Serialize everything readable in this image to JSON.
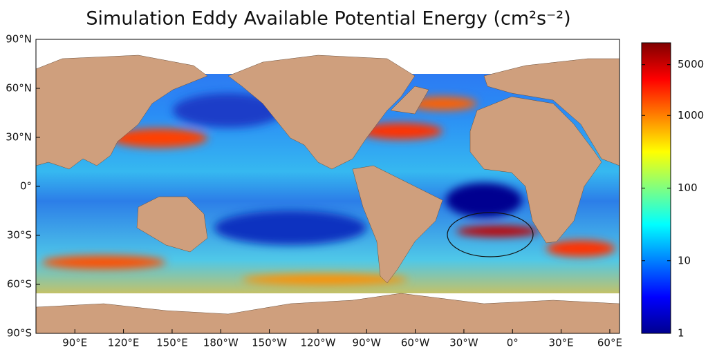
{
  "chart_data": {
    "type": "map",
    "title": "Simulation Eddy Available Potential Energy (cm²s⁻²)",
    "xlim": [
      66,
      426
    ],
    "xticks": [
      {
        "value": 90,
        "label": "90°E"
      },
      {
        "value": 120,
        "label": "120°E"
      },
      {
        "value": 150,
        "label": "150°E"
      },
      {
        "value": 180,
        "label": "180°W"
      },
      {
        "value": 210,
        "label": "150°W"
      },
      {
        "value": 240,
        "label": "120°W"
      },
      {
        "value": 270,
        "label": "90°W"
      },
      {
        "value": 300,
        "label": "60°W"
      },
      {
        "value": 330,
        "label": "30°W"
      },
      {
        "value": 360,
        "label": "0°"
      },
      {
        "value": 390,
        "label": "30°E"
      },
      {
        "value": 420,
        "label": "60°E"
      }
    ],
    "ylim": [
      -90,
      90
    ],
    "yticks": [
      {
        "value": 90,
        "label": "90°N"
      },
      {
        "value": 60,
        "label": "60°N"
      },
      {
        "value": 30,
        "label": "30°N"
      },
      {
        "value": 0,
        "label": "0°"
      },
      {
        "value": -30,
        "label": "30°S"
      },
      {
        "value": -60,
        "label": "60°S"
      },
      {
        "value": -90,
        "label": "90°S"
      }
    ],
    "colorbar": {
      "log_scale": true,
      "clim": [
        1,
        10000
      ],
      "ticks": [
        1,
        10,
        100,
        1000,
        5000
      ],
      "colors": [
        "#00008f",
        "#0000ff",
        "#0080ff",
        "#00ffff",
        "#80ff80",
        "#ffff00",
        "#ff8000",
        "#ff0000",
        "#800000"
      ]
    }
  }
}
